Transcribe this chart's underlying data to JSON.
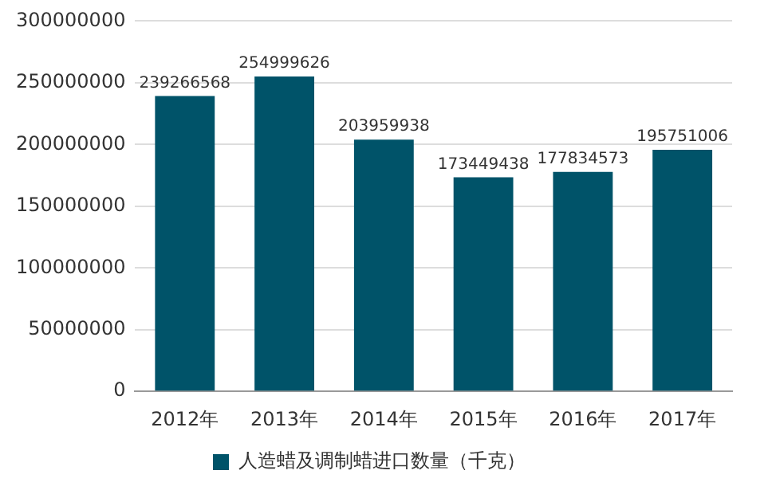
{
  "chart_data": {
    "type": "bar",
    "categories": [
      "2012年",
      "2013年",
      "2014年",
      "2015年",
      "2016年",
      "2017年"
    ],
    "series": [
      {
        "name": "人造蜡及调制蜡进口数量（千克）",
        "color": "#005369",
        "values": [
          239266568,
          254999626,
          203959938,
          173449438,
          177834573,
          195751006
        ]
      }
    ],
    "ylim": [
      0,
      300000000
    ],
    "yticks": [
      0,
      50000000,
      100000000,
      150000000,
      200000000,
      250000000,
      300000000
    ],
    "grid": "y",
    "legend": "bottom",
    "data_labels": true
  }
}
